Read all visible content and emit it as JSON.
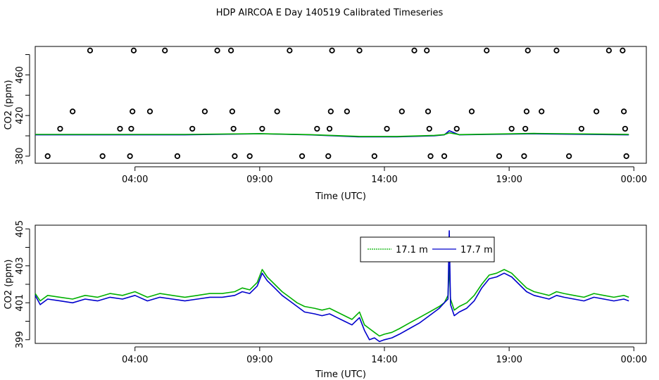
{
  "title": "HDP AIRCOA E  Day 140519  Calibrated Timeseries",
  "colors": {
    "green": "#00b000",
    "blue": "#0000cc",
    "axis": "#000000"
  },
  "chart_data": [
    {
      "type": "scatter",
      "xlabel": "Time (UTC)",
      "ylabel": "CO2 (ppm)",
      "x_unit": "hours UTC",
      "xlim": [
        0.0,
        24.5
      ],
      "ylim": [
        373,
        488
      ],
      "x_tick_values": [
        4,
        9,
        14,
        19,
        24
      ],
      "x_tick_labels": [
        "04:00",
        "09:00",
        "14:00",
        "19:00",
        "00:00"
      ],
      "y_ticks": [
        380,
        420,
        460
      ],
      "y_minor_ticks": [
        380,
        400,
        420,
        440,
        460,
        480
      ],
      "grid": false,
      "legend": "none",
      "points": [
        [
          0.5,
          380
        ],
        [
          1.0,
          407
        ],
        [
          1.5,
          424
        ],
        [
          2.2,
          484
        ],
        [
          2.7,
          380
        ],
        [
          3.4,
          407
        ],
        [
          3.8,
          380
        ],
        [
          3.85,
          407
        ],
        [
          3.9,
          424
        ],
        [
          3.95,
          484
        ],
        [
          4.6,
          424
        ],
        [
          5.2,
          484
        ],
        [
          5.7,
          380
        ],
        [
          6.3,
          407
        ],
        [
          6.8,
          424
        ],
        [
          7.3,
          484
        ],
        [
          7.85,
          484
        ],
        [
          7.9,
          424
        ],
        [
          7.95,
          407
        ],
        [
          8.0,
          380
        ],
        [
          8.6,
          380
        ],
        [
          9.1,
          407
        ],
        [
          9.7,
          424
        ],
        [
          10.2,
          484
        ],
        [
          10.7,
          380
        ],
        [
          11.3,
          407
        ],
        [
          11.75,
          380
        ],
        [
          11.8,
          407
        ],
        [
          11.85,
          424
        ],
        [
          11.9,
          484
        ],
        [
          12.5,
          424
        ],
        [
          13.0,
          484
        ],
        [
          13.6,
          380
        ],
        [
          14.1,
          407
        ],
        [
          14.7,
          424
        ],
        [
          15.2,
          484
        ],
        [
          15.7,
          484
        ],
        [
          15.75,
          424
        ],
        [
          15.8,
          407
        ],
        [
          15.85,
          380
        ],
        [
          16.4,
          380
        ],
        [
          16.9,
          407
        ],
        [
          17.5,
          424
        ],
        [
          18.1,
          484
        ],
        [
          18.6,
          380
        ],
        [
          19.1,
          407
        ],
        [
          19.6,
          380
        ],
        [
          19.65,
          407
        ],
        [
          19.7,
          424
        ],
        [
          19.75,
          484
        ],
        [
          20.3,
          424
        ],
        [
          20.9,
          484
        ],
        [
          21.4,
          380
        ],
        [
          21.9,
          407
        ],
        [
          22.5,
          424
        ],
        [
          23.0,
          484
        ],
        [
          23.55,
          484
        ],
        [
          23.6,
          424
        ],
        [
          23.65,
          407
        ],
        [
          23.7,
          380
        ]
      ],
      "lines": [
        {
          "color": "blue",
          "x": [
            0.0,
            6.0,
            9.0,
            11.0,
            13.0,
            14.5,
            16.0,
            16.4,
            16.6,
            17.0,
            20.0,
            23.8
          ],
          "y": [
            401,
            401,
            402,
            401,
            399,
            399,
            400,
            401,
            405,
            401,
            402,
            401
          ]
        },
        {
          "color": "green",
          "x": [
            0.0,
            6.0,
            9.0,
            11.0,
            13.0,
            14.5,
            16.0,
            16.4,
            16.6,
            17.0,
            20.0,
            23.8
          ],
          "y": [
            401.4,
            401.4,
            402.2,
            401.2,
            399.4,
            399.4,
            400.4,
            401.2,
            403,
            401.2,
            402.4,
            401.4
          ]
        }
      ]
    },
    {
      "type": "line",
      "xlabel": "Time (UTC)",
      "ylabel": "CO2 (ppm)",
      "x_unit": "hours UTC",
      "xlim": [
        0.0,
        24.5
      ],
      "ylim": [
        398.8,
        405.2
      ],
      "x_tick_values": [
        4,
        9,
        14,
        19,
        24
      ],
      "x_tick_labels": [
        "04:00",
        "09:00",
        "14:00",
        "19:00",
        "00:00"
      ],
      "y_ticks": [
        399,
        401,
        403,
        405
      ],
      "y_minor_ticks": [
        399,
        400,
        401,
        402,
        403,
        404,
        405
      ],
      "grid": false,
      "legend": "top-center",
      "series": [
        {
          "name": "17.1 m",
          "color": "green",
          "x": [
            0.0,
            0.2,
            0.5,
            1.0,
            1.5,
            2.0,
            2.5,
            3.0,
            3.5,
            4.0,
            4.5,
            5.0,
            5.5,
            6.0,
            6.5,
            7.0,
            7.5,
            8.0,
            8.3,
            8.6,
            8.9,
            9.1,
            9.3,
            9.6,
            9.9,
            10.2,
            10.5,
            10.8,
            11.2,
            11.5,
            11.8,
            12.1,
            12.4,
            12.7,
            13.0,
            13.2,
            13.4,
            13.6,
            13.8,
            14.0,
            14.3,
            14.6,
            15.0,
            15.4,
            15.8,
            16.2,
            16.4,
            16.55,
            16.6,
            16.65,
            16.8,
            17.0,
            17.3,
            17.6,
            17.9,
            18.2,
            18.5,
            18.8,
            19.1,
            19.4,
            19.7,
            20.0,
            20.3,
            20.6,
            20.9,
            21.2,
            21.6,
            22.0,
            22.4,
            22.8,
            23.2,
            23.6,
            23.8
          ],
          "y": [
            401.5,
            401.1,
            401.4,
            401.3,
            401.2,
            401.4,
            401.3,
            401.5,
            401.4,
            401.6,
            401.3,
            401.5,
            401.4,
            401.3,
            401.4,
            401.5,
            401.5,
            401.6,
            401.8,
            401.7,
            402.1,
            402.8,
            402.4,
            402.0,
            401.6,
            401.3,
            401.0,
            400.8,
            400.7,
            400.6,
            400.7,
            400.5,
            400.3,
            400.1,
            400.5,
            399.8,
            399.6,
            399.4,
            399.2,
            399.3,
            399.4,
            399.6,
            399.9,
            400.2,
            400.5,
            400.8,
            401.0,
            401.4,
            403.0,
            401.2,
            400.6,
            400.8,
            401.0,
            401.4,
            402.0,
            402.5,
            402.6,
            402.8,
            402.6,
            402.2,
            401.8,
            401.6,
            401.5,
            401.4,
            401.6,
            401.5,
            401.4,
            401.3,
            401.5,
            401.4,
            401.3,
            401.4,
            401.3
          ]
        },
        {
          "name": "17.7 m",
          "color": "blue",
          "x": [
            0.0,
            0.2,
            0.5,
            1.0,
            1.5,
            2.0,
            2.5,
            3.0,
            3.5,
            4.0,
            4.5,
            5.0,
            5.5,
            6.0,
            6.5,
            7.0,
            7.5,
            8.0,
            8.3,
            8.6,
            8.9,
            9.1,
            9.3,
            9.6,
            9.9,
            10.2,
            10.5,
            10.8,
            11.2,
            11.5,
            11.8,
            12.1,
            12.4,
            12.7,
            13.0,
            13.2,
            13.4,
            13.6,
            13.8,
            14.0,
            14.3,
            14.6,
            15.0,
            15.4,
            15.8,
            16.2,
            16.4,
            16.55,
            16.6,
            16.65,
            16.8,
            17.0,
            17.3,
            17.6,
            17.9,
            18.2,
            18.5,
            18.8,
            19.1,
            19.4,
            19.7,
            20.0,
            20.3,
            20.6,
            20.9,
            21.2,
            21.6,
            22.0,
            22.4,
            22.8,
            23.2,
            23.6,
            23.8
          ],
          "y": [
            401.4,
            400.9,
            401.2,
            401.1,
            401.0,
            401.2,
            401.1,
            401.3,
            401.2,
            401.4,
            401.1,
            401.3,
            401.2,
            401.1,
            401.2,
            401.3,
            401.3,
            401.4,
            401.6,
            401.5,
            401.9,
            402.6,
            402.2,
            401.8,
            401.4,
            401.1,
            400.8,
            400.5,
            400.4,
            400.3,
            400.4,
            400.2,
            400.0,
            399.8,
            400.2,
            399.5,
            399.0,
            399.1,
            398.9,
            399.0,
            399.1,
            399.3,
            399.6,
            399.9,
            400.3,
            400.7,
            401.0,
            401.2,
            404.9,
            400.9,
            400.3,
            400.5,
            400.7,
            401.1,
            401.8,
            402.3,
            402.4,
            402.6,
            402.4,
            402.0,
            401.6,
            401.4,
            401.3,
            401.2,
            401.4,
            401.3,
            401.2,
            401.1,
            401.3,
            401.2,
            401.1,
            401.2,
            401.1
          ]
        }
      ]
    }
  ]
}
